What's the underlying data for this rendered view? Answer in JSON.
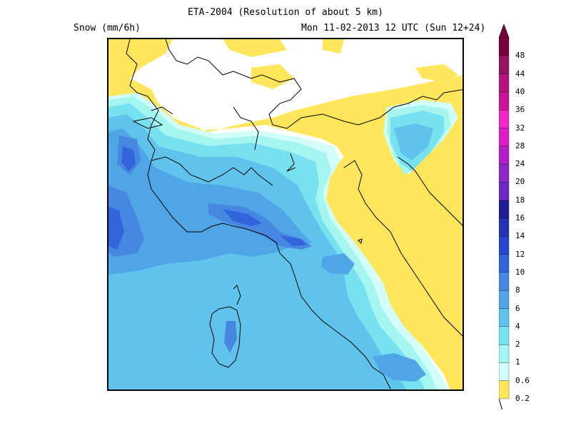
{
  "header": {
    "title": "ETA-2004 (Resolution of about 5 km)",
    "variable": "Snow (mm/6h)",
    "valid_time": "Mon 11-02-2013 12 UTC (Sun 12+24)"
  },
  "legend": {
    "levels": [
      "0.2",
      "0.6",
      "1",
      "2",
      "4",
      "6",
      "8",
      "10",
      "12",
      "14",
      "16",
      "18",
      "20",
      "24",
      "28",
      "32",
      "36",
      "40",
      "44",
      "48"
    ],
    "colors": [
      "#ffe65a",
      "#d2fffa",
      "#a5f5f0",
      "#78e1f0",
      "#5fc3eb",
      "#50a5e6",
      "#4687e1",
      "#3264dc",
      "#2846cd",
      "#2832b4",
      "#1e1e96",
      "#6e28c3",
      "#8c28c8",
      "#b41ec8",
      "#dc1ec8",
      "#f028c8",
      "#c81496",
      "#b4147d",
      "#961464",
      "#78003c"
    ]
  },
  "colors": {
    "frame": "#000000",
    "coastline": "#000000",
    "background": "#ffffff"
  }
}
